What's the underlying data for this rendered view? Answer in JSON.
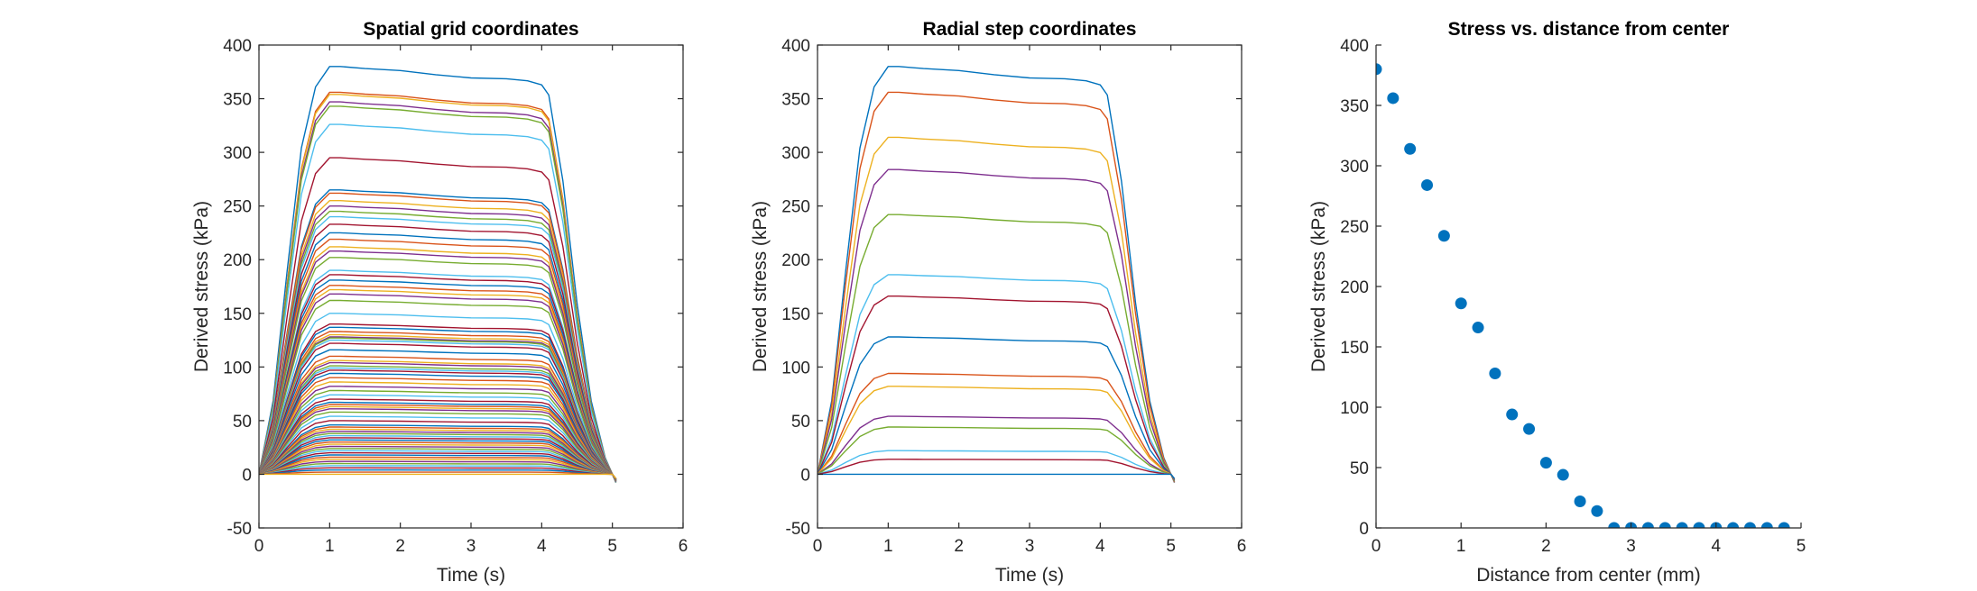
{
  "chart_data": [
    {
      "type": "line",
      "title": "Spatial grid coordinates",
      "xlabel": "Time (s)",
      "ylabel": "Derived stress (kPa)",
      "xlim": [
        0,
        6
      ],
      "ylim": [
        -50,
        400
      ],
      "xticks": [
        "0",
        "1",
        "2",
        "3",
        "4",
        "5",
        "6"
      ],
      "yticks": [
        "-50",
        "0",
        "50",
        "100",
        "150",
        "200",
        "250",
        "300",
        "350",
        "400"
      ],
      "grid": false,
      "legend": "none",
      "series_time_profile": {
        "t": [
          0,
          0.2,
          0.4,
          0.6,
          0.8,
          1.0,
          1.15,
          1.5,
          2.0,
          2.5,
          3.0,
          3.5,
          3.8,
          4.0,
          4.1,
          4.3,
          4.5,
          4.7,
          4.9,
          5.0,
          5.05
        ],
        "relative_level": [
          0,
          0.18,
          0.5,
          0.8,
          0.95,
          1.0,
          1.0,
          0.995,
          0.99,
          0.98,
          0.972,
          0.97,
          0.965,
          0.955,
          0.93,
          0.72,
          0.42,
          0.18,
          0.04,
          0.0,
          -0.012
        ]
      },
      "series_plateau_values": [
        380,
        356,
        354,
        347,
        343,
        326,
        295,
        265,
        262,
        255,
        250,
        245,
        240,
        233,
        225,
        219,
        212,
        208,
        202,
        190,
        186,
        181,
        176,
        172,
        168,
        162,
        150,
        140,
        137,
        133,
        130,
        128,
        127,
        125,
        122,
        116,
        110,
        106,
        104,
        101,
        99,
        97,
        94,
        90,
        86,
        82,
        78,
        74,
        70,
        67,
        65,
        63,
        61,
        58,
        54,
        50,
        46,
        44,
        42,
        40,
        38,
        36,
        34,
        32,
        30,
        28,
        26,
        24,
        22,
        20,
        18,
        16,
        14,
        12,
        10,
        8,
        6,
        4,
        2,
        0
      ]
    },
    {
      "type": "line",
      "title": "Radial step coordinates",
      "xlabel": "Time (s)",
      "ylabel": "Derived stress (kPa)",
      "xlim": [
        0,
        6
      ],
      "ylim": [
        -50,
        400
      ],
      "xticks": [
        "0",
        "1",
        "2",
        "3",
        "4",
        "5",
        "6"
      ],
      "yticks": [
        "-50",
        "0",
        "50",
        "100",
        "150",
        "200",
        "250",
        "300",
        "350",
        "400"
      ],
      "grid": false,
      "legend": "none",
      "series_time_profile": {
        "t": [
          0,
          0.2,
          0.4,
          0.6,
          0.8,
          1.0,
          1.15,
          1.5,
          2.0,
          2.5,
          3.0,
          3.5,
          3.8,
          4.0,
          4.1,
          4.3,
          4.5,
          4.7,
          4.9,
          5.0,
          5.05
        ],
        "relative_level": [
          0,
          0.18,
          0.5,
          0.8,
          0.95,
          1.0,
          1.0,
          0.995,
          0.99,
          0.98,
          0.972,
          0.97,
          0.965,
          0.955,
          0.93,
          0.72,
          0.42,
          0.18,
          0.04,
          0.0,
          -0.012
        ]
      },
      "series_plateau_values": [
        380,
        356,
        314,
        284,
        242,
        186,
        166,
        128,
        94,
        82,
        54,
        44,
        22,
        14,
        0
      ]
    },
    {
      "type": "scatter",
      "title": "Stress vs. distance from center",
      "xlabel": "Distance from center (mm)",
      "ylabel": "Derived stress (kPa)",
      "xlim": [
        0,
        5
      ],
      "ylim": [
        0,
        400
      ],
      "xticks": [
        "0",
        "1",
        "2",
        "3",
        "4",
        "5"
      ],
      "yticks": [
        "0",
        "50",
        "100",
        "150",
        "200",
        "250",
        "300",
        "350",
        "400"
      ],
      "grid": false,
      "legend": "none",
      "x": [
        0,
        0.2,
        0.4,
        0.6,
        0.8,
        1.0,
        1.2,
        1.4,
        1.6,
        1.8,
        2.0,
        2.2,
        2.4,
        2.6,
        2.8,
        3.0,
        3.2,
        3.4,
        3.6,
        3.8,
        4.0,
        4.2,
        4.4,
        4.6,
        4.8
      ],
      "y": [
        380,
        356,
        314,
        284,
        242,
        186,
        166,
        128,
        94,
        82,
        54,
        44,
        22,
        14,
        0,
        0,
        0,
        0,
        0,
        0,
        0,
        0,
        0,
        0,
        0
      ],
      "marker_color": "#0072BD"
    }
  ],
  "colors": {
    "series_order": [
      "#0072BD",
      "#D95319",
      "#EDB120",
      "#7E2F8E",
      "#77AC30",
      "#4DBEEE",
      "#A2142F"
    ],
    "axis": "#262626"
  }
}
